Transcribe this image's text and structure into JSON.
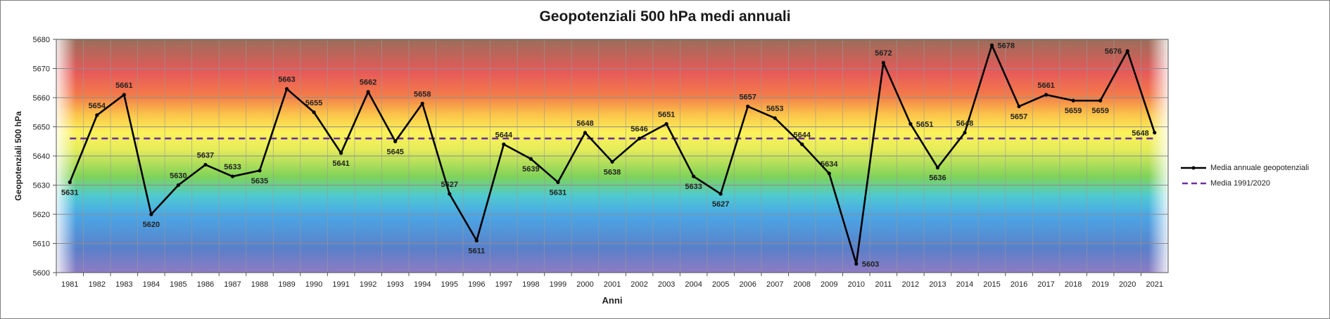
{
  "chart_data": {
    "type": "line",
    "title": "Geopotenziali 500 hPa medi annuali",
    "xlabel": "Anni",
    "ylabel": "Geopotenziali 500 hPa",
    "ylim": [
      5600,
      5680
    ],
    "yticks": [
      5600,
      5610,
      5620,
      5630,
      5640,
      5650,
      5660,
      5670,
      5680
    ],
    "grid": true,
    "legend_position": "right",
    "categories": [
      "1981",
      "1982",
      "1983",
      "1984",
      "1985",
      "1986",
      "1987",
      "1988",
      "1989",
      "1990",
      "1991",
      "1992",
      "1993",
      "1994",
      "1995",
      "1996",
      "1997",
      "1998",
      "1999",
      "2000",
      "2001",
      "2002",
      "2003",
      "2004",
      "2005",
      "2006",
      "2007",
      "2008",
      "2009",
      "2010",
      "2011",
      "2012",
      "2013",
      "2014",
      "2015",
      "2016",
      "2017",
      "2018",
      "2019",
      "2020",
      "2021"
    ],
    "series": [
      {
        "name": "Media annuale geopotenziali",
        "color": "#000000",
        "values": [
          5631,
          5654,
          5661,
          5620,
          5630,
          5637,
          5633,
          5635,
          5663,
          5655,
          5641,
          5662,
          5645,
          5658,
          5627,
          5611,
          5644,
          5639,
          5631,
          5648,
          5638,
          5646,
          5651,
          5633,
          5627,
          5657,
          5653,
          5644,
          5634,
          5603,
          5672,
          5651,
          5636,
          5648,
          5678,
          5657,
          5661,
          5659,
          5659,
          5676,
          5648
        ]
      },
      {
        "name": "Media 1991/2020",
        "color": "#7030a0",
        "style": "dashed",
        "value": 5646
      }
    ],
    "data_labels": [
      "5631",
      "5654",
      "5661",
      "5620",
      "5630",
      "5637",
      "5633",
      "5635",
      "5663",
      "5655",
      "5641",
      "5662",
      "5645",
      "5658",
      "5627",
      "5611",
      "5644",
      "5639",
      "5631",
      "5648",
      "5638",
      "5646",
      "5651",
      "5633",
      "5627",
      "5657",
      "5653",
      "5644",
      "5634",
      "5603",
      "5672",
      "5651",
      "5636",
      "5648",
      "5678",
      "5657",
      "5661",
      "5659",
      "5659",
      "5676",
      "5648"
    ],
    "label_position": [
      "below",
      "above",
      "above",
      "below",
      "above",
      "above",
      "above",
      "below",
      "above",
      "above",
      "below",
      "above",
      "below",
      "above",
      "above",
      "below",
      "above",
      "below",
      "below",
      "above",
      "below",
      "above",
      "above",
      "below",
      "below",
      "above",
      "above",
      "above",
      "above",
      "right",
      "above",
      "right",
      "below",
      "above",
      "right",
      "below",
      "above",
      "below",
      "below",
      "left",
      "left"
    ],
    "background": "rainbow gradient, violet at bottom to brown at top"
  }
}
